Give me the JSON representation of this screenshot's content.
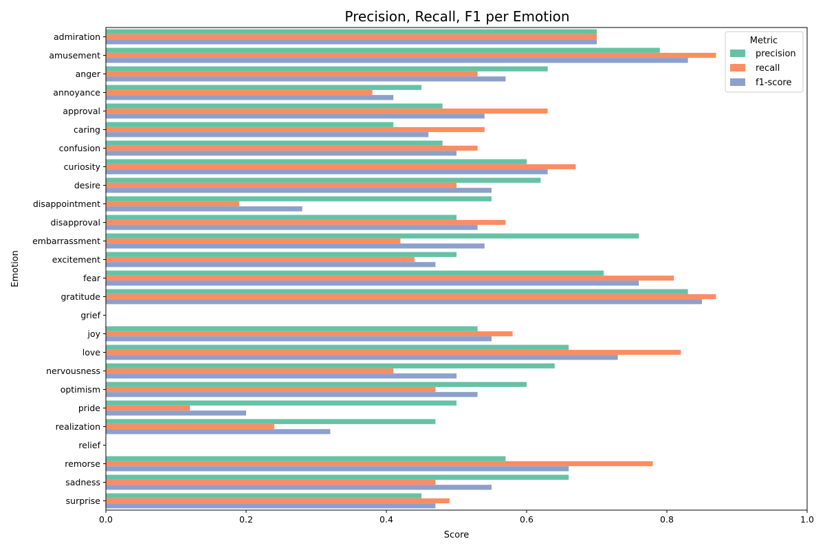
{
  "chart_data": {
    "type": "bar",
    "orientation": "horizontal",
    "title": "Precision, Recall, F1 per Emotion",
    "xlabel": "Score",
    "ylabel": "Emotion",
    "xlim": [
      0,
      1
    ],
    "xticks": [
      "0.0",
      "0.2",
      "0.4",
      "0.6",
      "0.8",
      "1.0"
    ],
    "grid": false,
    "legend": {
      "title": "Metric",
      "position": "top-right"
    },
    "categories": [
      "admiration",
      "amusement",
      "anger",
      "annoyance",
      "approval",
      "caring",
      "confusion",
      "curiosity",
      "desire",
      "disappointment",
      "disapproval",
      "embarrassment",
      "excitement",
      "fear",
      "gratitude",
      "grief",
      "joy",
      "love",
      "nervousness",
      "optimism",
      "pride",
      "realization",
      "relief",
      "remorse",
      "sadness",
      "surprise"
    ],
    "series": [
      {
        "name": "precision",
        "color": "#66c2a5",
        "values": [
          0.7,
          0.79,
          0.63,
          0.45,
          0.48,
          0.41,
          0.48,
          0.6,
          0.62,
          0.55,
          0.5,
          0.76,
          0.5,
          0.71,
          0.83,
          0.0,
          0.53,
          0.66,
          0.64,
          0.6,
          0.5,
          0.47,
          0.0,
          0.57,
          0.66,
          0.45
        ]
      },
      {
        "name": "recall",
        "color": "#fc8d62",
        "values": [
          0.7,
          0.87,
          0.53,
          0.38,
          0.63,
          0.54,
          0.53,
          0.67,
          0.5,
          0.19,
          0.57,
          0.42,
          0.44,
          0.81,
          0.87,
          0.0,
          0.58,
          0.82,
          0.41,
          0.47,
          0.12,
          0.24,
          0.0,
          0.78,
          0.47,
          0.49
        ]
      },
      {
        "name": "f1-score",
        "color": "#8da0cb",
        "values": [
          0.7,
          0.83,
          0.57,
          0.41,
          0.54,
          0.46,
          0.5,
          0.63,
          0.55,
          0.28,
          0.53,
          0.54,
          0.47,
          0.76,
          0.85,
          0.0,
          0.55,
          0.73,
          0.5,
          0.53,
          0.2,
          0.32,
          0.0,
          0.66,
          0.55,
          0.47
        ]
      }
    ]
  }
}
